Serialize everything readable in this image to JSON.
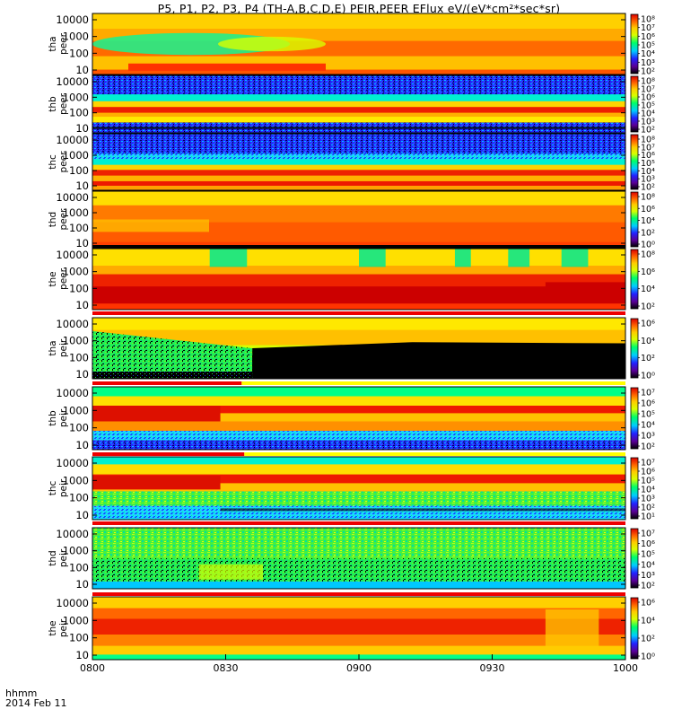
{
  "chart_data": {
    "type": "heatmap",
    "title": "P5, P1, P2, P3, P4 (TH-A,B,C,D,E) PEIR,PEER EFlux eV/(eV*cm²*sec*sr)",
    "x_ticks": [
      "0800",
      "0830",
      "0900",
      "0930",
      "1000"
    ],
    "x_unit_label": "hhmm",
    "date_label": "2014 Feb 11",
    "colormap": [
      "#000000",
      "#5a0096",
      "#2222ff",
      "#00ccff",
      "#00ff66",
      "#d8ff00",
      "#ffcc00",
      "#ff6600",
      "#dd0000"
    ],
    "panels": [
      {
        "id": "tha-peer",
        "probe": "tha",
        "species": "peer",
        "y_ticks": [
          "10000",
          "1000",
          "100",
          "10"
        ],
        "cbar_ticks": [
          "10⁸",
          "10⁷",
          "10⁶",
          "10⁵",
          "10⁴",
          "10³",
          "10²"
        ],
        "has_bar": false
      },
      {
        "id": "thb-peer",
        "probe": "thb",
        "species": "peer",
        "y_ticks": [
          "10000",
          "1000",
          "100",
          "10"
        ],
        "cbar_ticks": [
          "10⁸",
          "10⁷",
          "10⁶",
          "10⁵",
          "10⁴",
          "10³",
          "10²"
        ],
        "has_bar": false
      },
      {
        "id": "thc-peer",
        "probe": "thc",
        "species": "peer",
        "y_ticks": [
          "10000",
          "1000",
          "100",
          "10"
        ],
        "cbar_ticks": [
          "10⁸",
          "10⁷",
          "10⁶",
          "10⁵",
          "10⁴",
          "10³",
          "10²"
        ],
        "has_bar": false
      },
      {
        "id": "thd-peer",
        "probe": "thd",
        "species": "peer",
        "y_ticks": [
          "10000",
          "1000",
          "100",
          "10"
        ],
        "cbar_ticks": [
          "10⁸",
          "10⁶",
          "10⁴",
          "10²",
          "10⁰"
        ],
        "has_bar": false
      },
      {
        "id": "the-peer",
        "probe": "the",
        "species": "peer",
        "y_ticks": [
          "10000",
          "1000",
          "100",
          "10"
        ],
        "cbar_ticks": [
          "10⁸",
          "10⁶",
          "10⁴",
          "10²"
        ],
        "has_bar": true
      },
      {
        "id": "tha-peir",
        "probe": "tha",
        "species": "peir",
        "y_ticks": [
          "10000",
          "1000",
          "100",
          "10"
        ],
        "cbar_ticks": [
          "10⁶",
          "10⁴",
          "10²",
          "10⁰"
        ],
        "has_bar": true
      },
      {
        "id": "thb-peir",
        "probe": "thb",
        "species": "peir",
        "y_ticks": [
          "10000",
          "1000",
          "100",
          "10"
        ],
        "cbar_ticks": [
          "10⁷",
          "10⁶",
          "10⁵",
          "10⁴",
          "10³",
          "10²"
        ],
        "has_bar": true
      },
      {
        "id": "thc-peir",
        "probe": "thc",
        "species": "peir",
        "y_ticks": [
          "10000",
          "1000",
          "100",
          "10"
        ],
        "cbar_ticks": [
          "10⁷",
          "10⁶",
          "10⁵",
          "10⁴",
          "10³",
          "10²",
          "10¹"
        ],
        "has_bar": true
      },
      {
        "id": "thd-peir",
        "probe": "thd",
        "species": "peir",
        "y_ticks": [
          "10000",
          "1000",
          "100",
          "10"
        ],
        "cbar_ticks": [
          "10⁷",
          "10⁶",
          "10⁵",
          "10⁴",
          "10³",
          "10²"
        ],
        "has_bar": true
      },
      {
        "id": "the-peir",
        "probe": "the",
        "species": "peir",
        "y_ticks": [
          "10000",
          "1000",
          "100",
          "10"
        ],
        "cbar_ticks": [
          "10⁶",
          "10⁴",
          "10²",
          "10⁰"
        ],
        "has_bar": false
      }
    ]
  }
}
